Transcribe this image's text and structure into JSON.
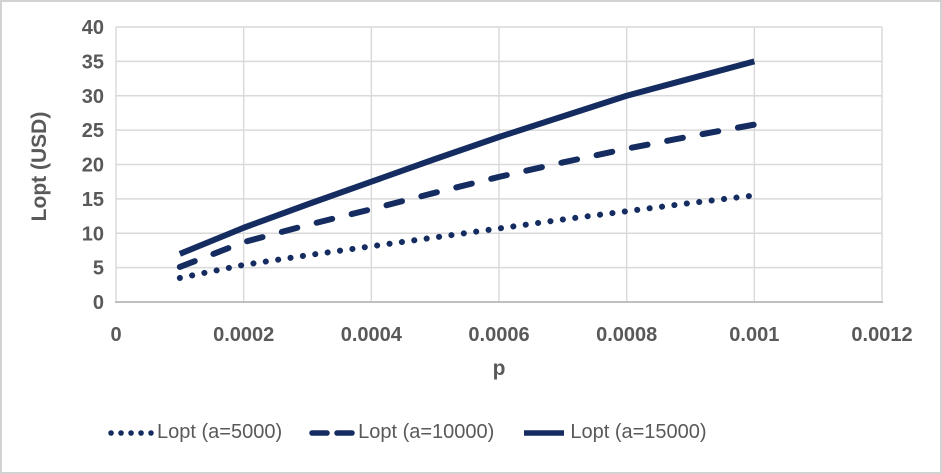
{
  "chart": {
    "series_color": "#142C60",
    "grid_color": "#d9d9d9",
    "axis_line_color": "#bfbfbf",
    "text_color": "#595959",
    "background": "#ffffff",
    "frame_border_color": "#d2d2d2"
  },
  "chart_data": {
    "type": "line",
    "title": "",
    "xlabel": "p",
    "ylabel": "Lopt (USD)",
    "xlim": [
      0,
      0.0012
    ],
    "ylim": [
      0,
      40
    ],
    "xticks": [
      0,
      0.0002,
      0.0004,
      0.0006,
      0.0008,
      0.001,
      0.0012
    ],
    "xtick_labels": [
      "0",
      "0.0002",
      "0.0004",
      "0.0006",
      "0.0008",
      "0.001",
      "0.0012"
    ],
    "yticks": [
      0,
      5,
      10,
      15,
      20,
      25,
      30,
      35,
      40
    ],
    "ytick_labels": [
      "0",
      "5",
      "10",
      "15",
      "20",
      "25",
      "30",
      "35",
      "40"
    ],
    "grid": "both",
    "legend_position": "bottom",
    "x": [
      0.0001,
      0.0002,
      0.0003,
      0.0004,
      0.0005,
      0.0006,
      0.0007,
      0.0008,
      0.0009,
      0.001
    ],
    "series": [
      {
        "name": "Lopt (a=5000)",
        "style": "dotted",
        "values": [
          3.5,
          5.4,
          6.8,
          8.1,
          9.4,
          10.7,
          12.0,
          13.2,
          14.4,
          15.5
        ]
      },
      {
        "name": "Lopt (a=10000)",
        "style": "dashed",
        "values": [
          5.1,
          8.7,
          11.2,
          13.5,
          15.9,
          18.2,
          20.3,
          22.3,
          24.1,
          25.8
        ]
      },
      {
        "name": "Lopt (a=15000)",
        "style": "solid",
        "values": [
          7.0,
          10.8,
          14.2,
          17.5,
          20.8,
          24.0,
          27.0,
          30.0,
          32.5,
          35.0
        ]
      }
    ]
  }
}
